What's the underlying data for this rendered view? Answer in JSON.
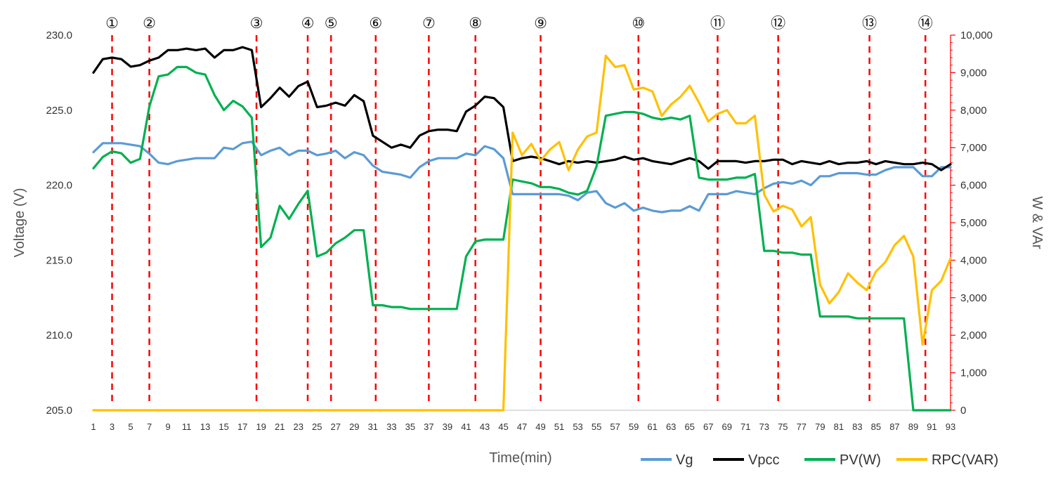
{
  "chart_data": {
    "type": "line",
    "xlabel": "Time(min)",
    "ylabel": "Voltage (V)",
    "y2label": "W & VAr",
    "xlim": [
      1,
      93
    ],
    "ylim": [
      205,
      230
    ],
    "y2lim": [
      0,
      10000
    ],
    "x_ticks": [
      "1",
      "3",
      "5",
      "7",
      "9",
      "11",
      "13",
      "15",
      "17",
      "19",
      "21",
      "23",
      "25",
      "27",
      "29",
      "31",
      "33",
      "35",
      "37",
      "39",
      "41",
      "43",
      "45",
      "47",
      "49",
      "51",
      "53",
      "55",
      "57",
      "59",
      "61",
      "63",
      "65",
      "67",
      "69",
      "71",
      "73",
      "75",
      "77",
      "79",
      "81",
      "83",
      "85",
      "87",
      "89",
      "91",
      "93"
    ],
    "y_ticks": [
      "205.0",
      "210.0",
      "215.0",
      "220.0",
      "225.0",
      "230.0"
    ],
    "y2_ticks": [
      "0",
      "1,000",
      "2,000",
      "3,000",
      "4,000",
      "5,000",
      "6,000",
      "7,000",
      "8,000",
      "9,000",
      "10,000"
    ],
    "legend_position": "bottom-right",
    "event_markers": [
      {
        "label": "①",
        "x": 3
      },
      {
        "label": "②",
        "x": 7
      },
      {
        "label": "③",
        "x": 18.5
      },
      {
        "label": "④",
        "x": 24
      },
      {
        "label": "⑤",
        "x": 26.5
      },
      {
        "label": "⑥",
        "x": 31.3
      },
      {
        "label": "⑦",
        "x": 37
      },
      {
        "label": "⑧",
        "x": 42
      },
      {
        "label": "⑨",
        "x": 49
      },
      {
        "label": "⑩",
        "x": 59.5
      },
      {
        "label": "⑪",
        "x": 68
      },
      {
        "label": "⑫",
        "x": 74.5
      },
      {
        "label": "⑬",
        "x": 84.3
      },
      {
        "label": "⑭",
        "x": 90.3
      }
    ],
    "series": [
      {
        "name": "Vg",
        "axis": "left",
        "color": "#5b9bd5",
        "values": [
          222.2,
          222.8,
          222.8,
          222.8,
          222.7,
          222.6,
          222.1,
          221.5,
          221.4,
          221.6,
          221.7,
          221.8,
          221.8,
          221.8,
          222.5,
          222.4,
          222.8,
          222.9,
          222.0,
          222.3,
          222.5,
          222.0,
          222.3,
          222.3,
          222.0,
          222.1,
          222.3,
          221.8,
          222.2,
          222.0,
          221.3,
          220.9,
          220.8,
          220.7,
          220.5,
          221.2,
          221.6,
          221.8,
          221.8,
          221.8,
          222.1,
          222.0,
          222.6,
          222.4,
          221.8,
          219.4,
          219.4,
          219.4,
          219.4,
          219.4,
          219.4,
          219.3,
          219.0,
          219.5,
          219.6,
          218.8,
          218.5,
          218.8,
          218.3,
          218.5,
          218.3,
          218.2,
          218.3,
          218.3,
          218.6,
          218.3,
          219.4,
          219.4,
          219.4,
          219.6,
          219.5,
          219.4,
          219.8,
          220.1,
          220.2,
          220.1,
          220.3,
          220.0,
          220.6,
          220.6,
          220.8,
          220.8,
          220.8,
          220.7,
          220.7,
          221.0,
          221.2,
          221.2,
          221.2,
          220.6,
          220.6,
          221.2,
          221.2
        ]
      },
      {
        "name": "Vpcc",
        "axis": "left",
        "color": "#000000",
        "values": [
          227.5,
          228.4,
          228.5,
          228.4,
          227.9,
          228.0,
          228.3,
          228.5,
          229.0,
          229.0,
          229.1,
          229.0,
          229.1,
          228.5,
          229.0,
          229.0,
          229.2,
          229.0,
          225.2,
          225.8,
          226.5,
          225.9,
          226.6,
          226.9,
          225.2,
          225.3,
          225.5,
          225.3,
          226.0,
          225.6,
          223.3,
          222.9,
          222.5,
          222.7,
          222.5,
          223.3,
          223.6,
          223.7,
          223.7,
          223.6,
          224.9,
          225.3,
          225.9,
          225.8,
          225.2,
          221.6,
          221.8,
          221.9,
          221.8,
          221.6,
          221.4,
          221.6,
          221.5,
          221.6,
          221.5,
          221.6,
          221.7,
          221.9,
          221.7,
          221.8,
          221.6,
          221.5,
          221.4,
          221.6,
          221.8,
          221.6,
          221.1,
          221.6,
          221.6,
          221.6,
          221.5,
          221.6,
          221.6,
          221.7,
          221.7,
          221.4,
          221.6,
          221.5,
          221.4,
          221.6,
          221.4,
          221.5,
          221.5,
          221.6,
          221.4,
          221.6,
          221.5,
          221.4,
          221.4,
          221.5,
          221.4,
          221.0,
          221.4
        ]
      },
      {
        "name": "PV(W)",
        "axis": "right",
        "color": "#00b050",
        "values": [
          6450,
          6750,
          6900,
          6850,
          6600,
          6700,
          8100,
          8900,
          8950,
          9150,
          9150,
          9000,
          8950,
          8400,
          8000,
          8250,
          8100,
          7800,
          4350,
          4600,
          5450,
          5100,
          5500,
          5850,
          4100,
          4200,
          4450,
          4600,
          4800,
          4800,
          2800,
          2800,
          2750,
          2750,
          2700,
          2700,
          2700,
          2700,
          2700,
          2700,
          4100,
          4500,
          4550,
          4550,
          4550,
          6150,
          6100,
          6050,
          5950,
          5950,
          5900,
          5800,
          5750,
          5850,
          6500,
          7850,
          7900,
          7950,
          7950,
          7900,
          7800,
          7750,
          7800,
          7750,
          7850,
          6200,
          6150,
          6150,
          6150,
          6200,
          6200,
          6300,
          4250,
          4250,
          4200,
          4200,
          4150,
          4150,
          2500,
          2500,
          2500,
          2500,
          2450,
          2450,
          2450,
          2450,
          2450,
          2450,
          0,
          0,
          0,
          0,
          0
        ]
      },
      {
        "name": "RPC(VAR)",
        "axis": "right",
        "color": "#ffc000",
        "values": [
          0,
          0,
          0,
          0,
          0,
          0,
          0,
          0,
          0,
          0,
          0,
          0,
          0,
          0,
          0,
          0,
          0,
          0,
          0,
          0,
          0,
          0,
          0,
          0,
          0,
          0,
          0,
          0,
          0,
          0,
          0,
          0,
          0,
          0,
          0,
          0,
          0,
          0,
          0,
          0,
          0,
          0,
          0,
          0,
          0,
          7400,
          6800,
          7100,
          6650,
          6950,
          7150,
          6400,
          6950,
          7300,
          7400,
          9450,
          9150,
          9200,
          8550,
          8600,
          8500,
          7850,
          8150,
          8350,
          8650,
          8200,
          7700,
          7900,
          8000,
          7650,
          7650,
          7850,
          5750,
          5300,
          5450,
          5350,
          4900,
          5150,
          3350,
          2850,
          3150,
          3650,
          3400,
          3200,
          3700,
          3950,
          4400,
          4650,
          4100,
          1750,
          3200,
          3450,
          4050
        ]
      }
    ]
  }
}
